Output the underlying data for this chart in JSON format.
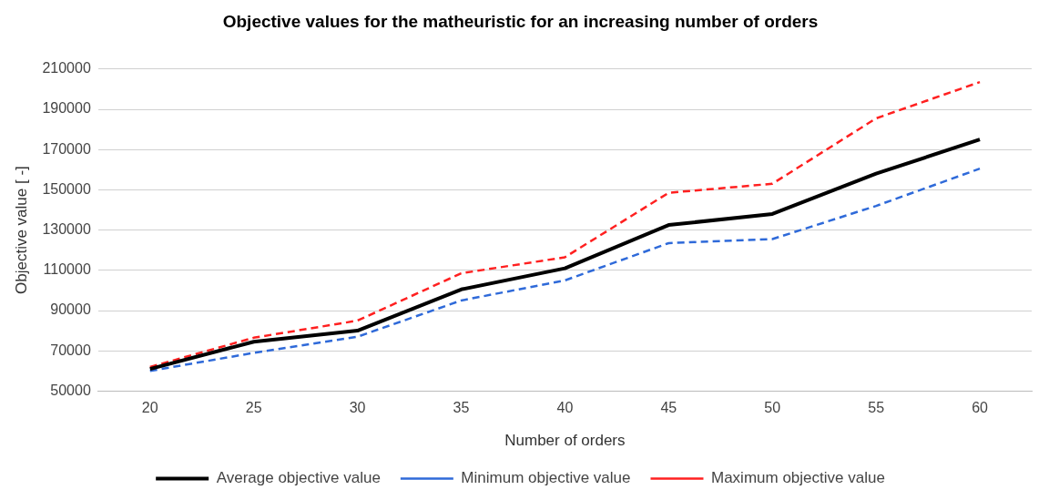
{
  "chart_data": {
    "type": "line",
    "title": "Objective values for the matheuristic for an increasing number of orders",
    "xlabel": "Number of orders",
    "ylabel": "Objective value [ -]",
    "categories": [
      "20",
      "25",
      "30",
      "35",
      "40",
      "45",
      "50",
      "55",
      "60"
    ],
    "series": [
      {
        "name": "Average objective value",
        "color": "#000000",
        "line_style": "solid",
        "values": [
          61000,
          74500,
          80000,
          100500,
          111000,
          132500,
          138000,
          158000,
          175000
        ]
      },
      {
        "name": "Minimum objective value",
        "color": "#2f6ad9",
        "line_style": "dashed",
        "values": [
          60000,
          69000,
          77000,
          95000,
          105000,
          123500,
          125500,
          142000,
          160500
        ]
      },
      {
        "name": "Maximum objective value",
        "color": "#ff2020",
        "line_style": "dashed",
        "values": [
          62000,
          76500,
          85000,
          108500,
          116500,
          148500,
          153000,
          185500,
          203500
        ]
      }
    ],
    "ylim": [
      50000,
      210000
    ],
    "yticks": [
      50000,
      70000,
      90000,
      110000,
      130000,
      150000,
      170000,
      190000,
      210000
    ],
    "grid": "y",
    "legend": "bottom",
    "marker": "none"
  }
}
